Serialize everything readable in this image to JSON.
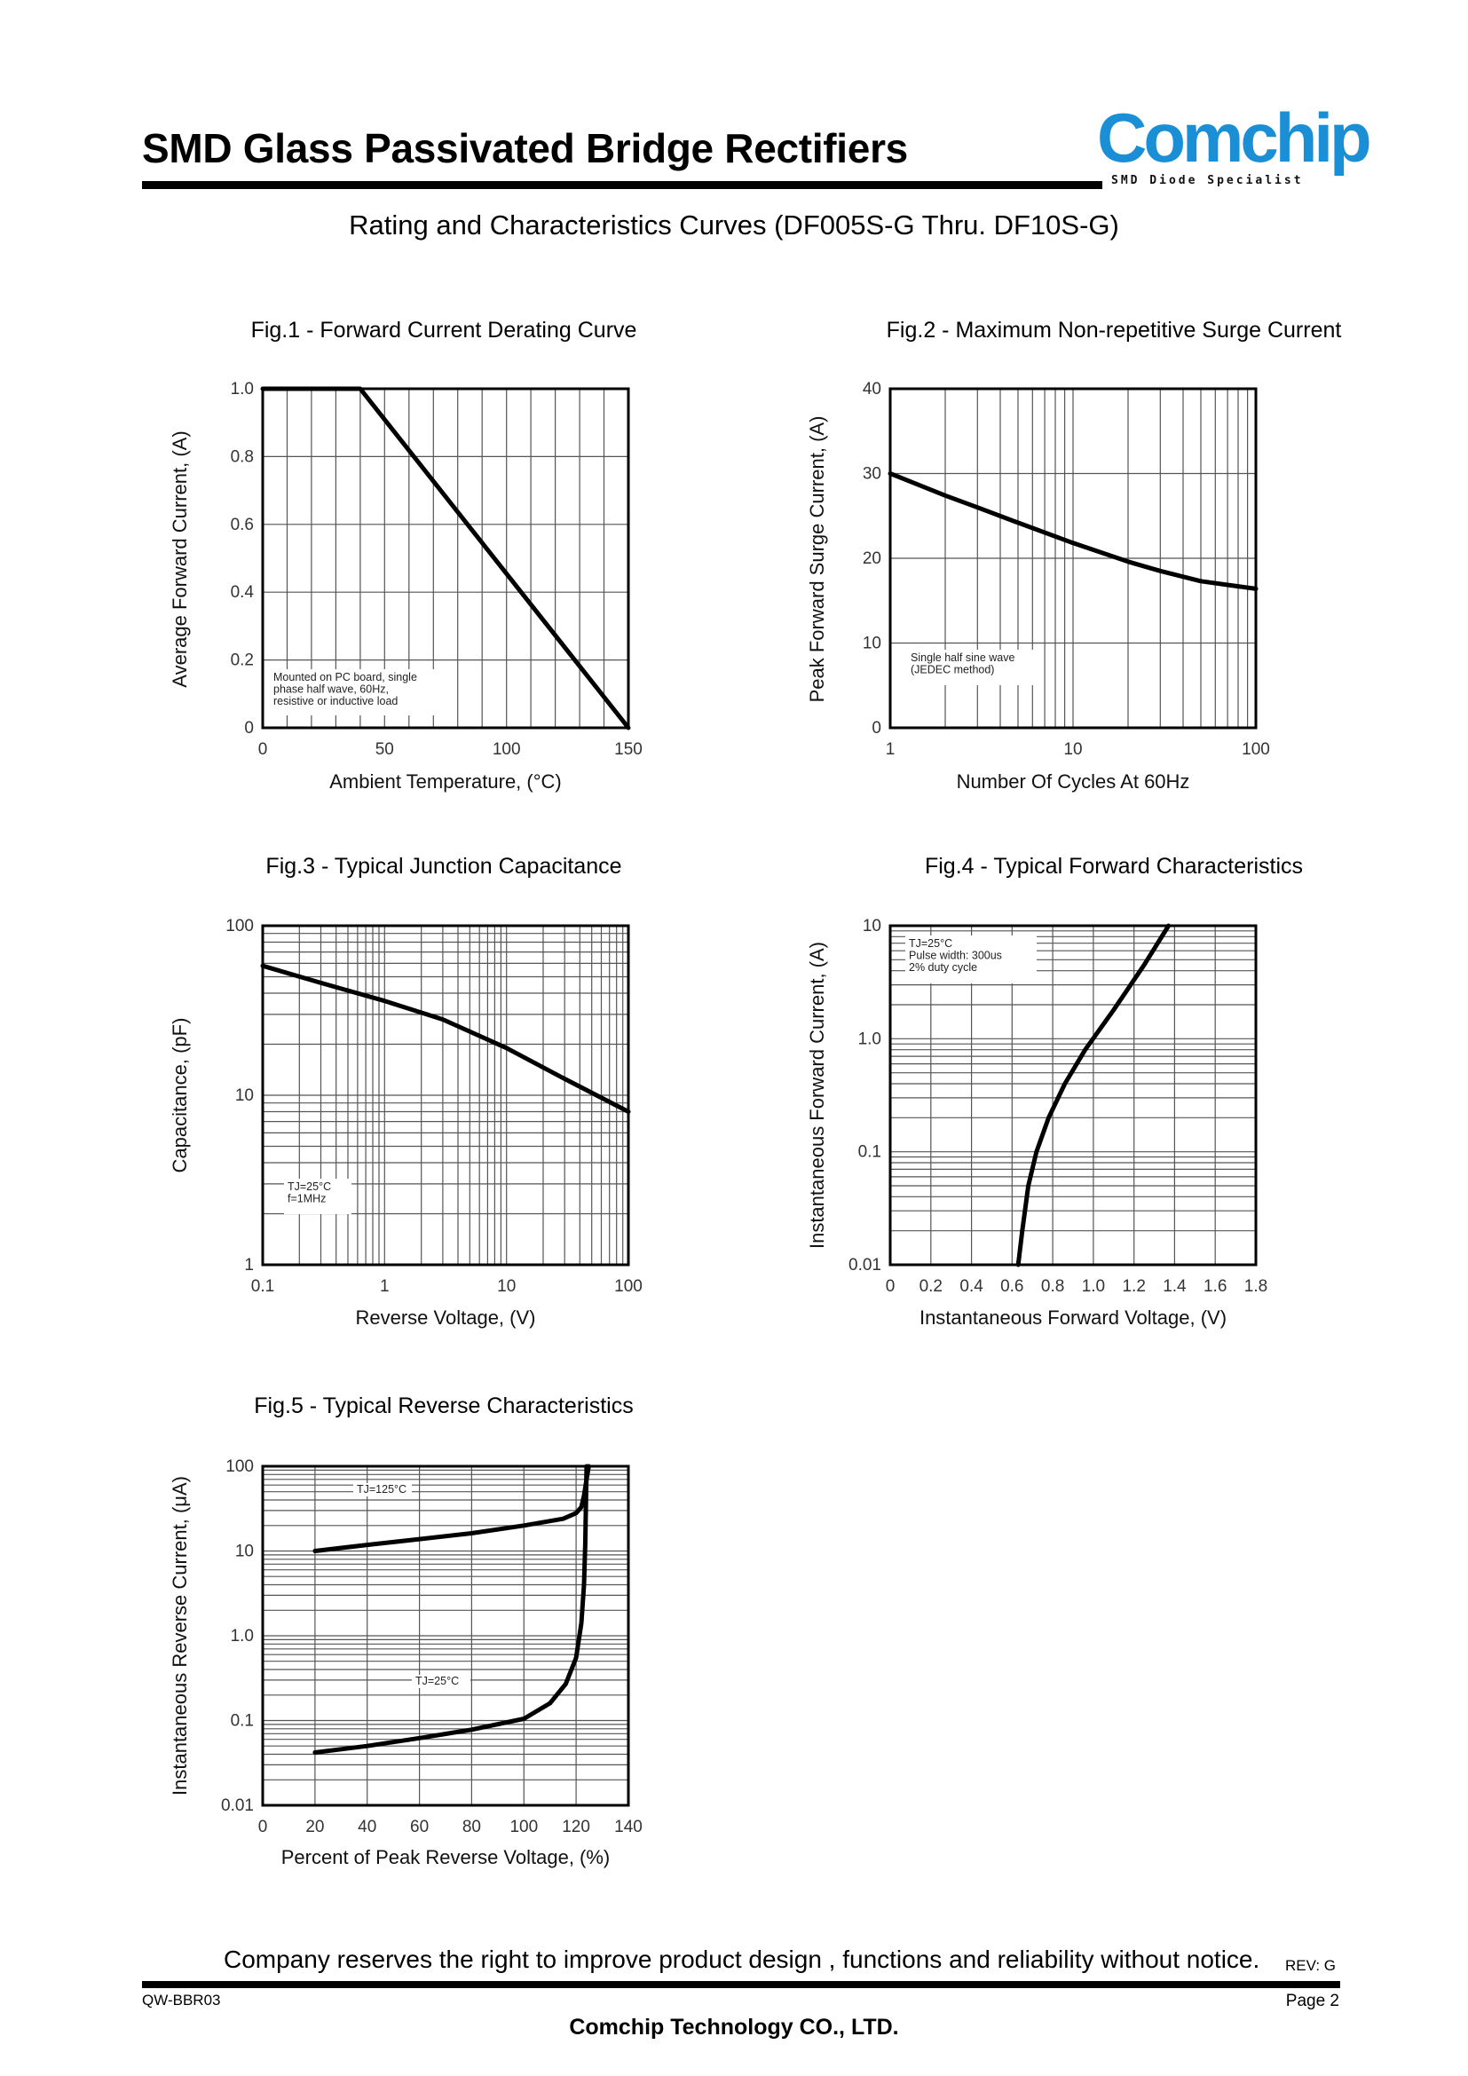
{
  "header": {
    "title": "SMD Glass Passivated Bridge Rectifiers",
    "logo_text": "Comchip",
    "logo_tagline": "SMD Diode Specialist",
    "subtitle": "Rating and Characteristics Curves (DF005S-G Thru. DF10S-G)"
  },
  "colors": {
    "logo": "#1a8fd6",
    "grid": "#555555",
    "curve": "#000000"
  },
  "chart_data": [
    {
      "id": "fig1",
      "type": "line",
      "title": "Fig.1 - Forward Current Derating Curve",
      "xlabel": "Ambient Temperature, (°C)",
      "ylabel": "Average Forward Current, (A)",
      "xlim": [
        0,
        150
      ],
      "ylim": [
        0,
        1.0
      ],
      "xscale": "linear",
      "yscale": "linear",
      "xticks": [
        0,
        50,
        100,
        150
      ],
      "xtick_labels": [
        "0",
        "50",
        "100",
        "150"
      ],
      "yticks": [
        0,
        0.2,
        0.4,
        0.6,
        0.8,
        1.0
      ],
      "ytick_labels": [
        "0",
        "0.2",
        "0.4",
        "0.6",
        "0.8",
        "1.0"
      ],
      "annotation": [
        "Mounted on PC board, single",
        "phase half wave, 60Hz,",
        "resistive or inductive load"
      ],
      "series": [
        {
          "x": [
            0,
            40,
            150
          ],
          "y": [
            1.0,
            1.0,
            0
          ]
        }
      ]
    },
    {
      "id": "fig2",
      "type": "line",
      "title": "Fig.2 - Maximum Non-repetitive Surge Current",
      "xlabel": "Number Of Cycles At 60Hz",
      "ylabel": "Peak Forward Surge Current, (A)",
      "xlim": [
        1,
        100
      ],
      "ylim": [
        0,
        40
      ],
      "xscale": "log",
      "yscale": "linear",
      "xticks": [
        1,
        10,
        100
      ],
      "xtick_labels": [
        "1",
        "10",
        "100"
      ],
      "yticks": [
        0,
        10,
        20,
        30,
        40
      ],
      "ytick_labels": [
        "0",
        "10",
        "20",
        "30",
        "40"
      ],
      "annotation": [
        "Single half sine wave",
        "(JEDEC method)"
      ],
      "series": [
        {
          "x": [
            1,
            2,
            3,
            5,
            10,
            20,
            30,
            50,
            100
          ],
          "y": [
            30,
            27.4,
            26,
            24.2,
            21.8,
            19.6,
            18.5,
            17.3,
            16.4
          ]
        }
      ]
    },
    {
      "id": "fig3",
      "type": "line",
      "title": "Fig.3 - Typical Junction Capacitance",
      "xlabel": "Reverse Voltage, (V)",
      "ylabel": "Capacitance, (pF)",
      "xlim": [
        0.1,
        100
      ],
      "ylim": [
        1,
        100
      ],
      "xscale": "log",
      "yscale": "log",
      "xticks": [
        0.1,
        1,
        10,
        100
      ],
      "xtick_labels": [
        "0.1",
        "1",
        "10",
        "100"
      ],
      "yticks": [
        1,
        10,
        100
      ],
      "ytick_labels": [
        "1",
        "10",
        "100"
      ],
      "annotation": [
        "TJ=25°C",
        "f=1MHz"
      ],
      "series": [
        {
          "x": [
            0.1,
            0.3,
            1,
            3,
            10,
            30,
            100
          ],
          "y": [
            58,
            46,
            36,
            28,
            19,
            12.5,
            8
          ]
        }
      ]
    },
    {
      "id": "fig4",
      "type": "line",
      "title": "Fig.4 - Typical Forward Characteristics",
      "xlabel": "Instantaneous Forward Voltage, (V)",
      "ylabel": "Instantaneous Forward Current, (A)",
      "xlim": [
        0,
        1.8
      ],
      "ylim": [
        0.01,
        10
      ],
      "xscale": "linear",
      "yscale": "log",
      "xticks": [
        0,
        0.2,
        0.4,
        0.6,
        0.8,
        1.0,
        1.2,
        1.4,
        1.6,
        1.8
      ],
      "xtick_labels": [
        "0",
        "0.2",
        "0.4",
        "0.6",
        "0.8",
        "1.0",
        "1.2",
        "1.4",
        "1.6",
        "1.8"
      ],
      "yticks": [
        0.01,
        0.1,
        1,
        10
      ],
      "ytick_labels": [
        "0.01",
        "0.1",
        "1.0",
        "10"
      ],
      "annotation": [
        "TJ=25°C",
        "Pulse width: 300us",
        "2% duty cycle"
      ],
      "series": [
        {
          "x": [
            0.63,
            0.65,
            0.68,
            0.72,
            0.78,
            0.86,
            0.96,
            1.1,
            1.25,
            1.37
          ],
          "y": [
            0.01,
            0.02,
            0.05,
            0.1,
            0.2,
            0.4,
            0.8,
            1.8,
            4.5,
            10
          ]
        }
      ]
    },
    {
      "id": "fig5",
      "type": "line",
      "title": "Fig.5 - Typical Reverse Characteristics",
      "xlabel": "Percent of Peak Reverse Voltage, (%)",
      "ylabel": "Instantaneous Reverse Current, (μA)",
      "xlim": [
        0,
        140
      ],
      "ylim": [
        0.01,
        100
      ],
      "xscale": "linear",
      "yscale": "log",
      "xticks": [
        0,
        20,
        40,
        60,
        80,
        100,
        120,
        140
      ],
      "xtick_labels": [
        "0",
        "20",
        "40",
        "60",
        "80",
        "100",
        "120",
        "140"
      ],
      "yticks": [
        0.01,
        0.1,
        1,
        10,
        100
      ],
      "ytick_labels": [
        "0.01",
        "0.1",
        "1.0",
        "10",
        "100"
      ],
      "series": [
        {
          "name": "TJ=125°C",
          "x": [
            20,
            40,
            60,
            80,
            100,
            115,
            120,
            122,
            123,
            124,
            124.8
          ],
          "y": [
            10,
            11.8,
            13.8,
            16.2,
            20,
            24,
            28,
            33,
            45,
            70,
            100
          ]
        },
        {
          "name": "TJ=25°C",
          "x": [
            20,
            40,
            60,
            80,
            100,
            110,
            116,
            120,
            122,
            123,
            123.5,
            124
          ],
          "y": [
            0.042,
            0.05,
            0.062,
            0.078,
            0.105,
            0.16,
            0.27,
            0.55,
            1.4,
            4,
            12,
            100
          ]
        }
      ]
    }
  ],
  "footer": {
    "notice": "Company reserves the right to improve product design , functions and reliability without notice.",
    "rev": "REV: G",
    "doc_id": "QW-BBR03",
    "page": "Page 2",
    "company": "Comchip Technology CO., LTD."
  }
}
